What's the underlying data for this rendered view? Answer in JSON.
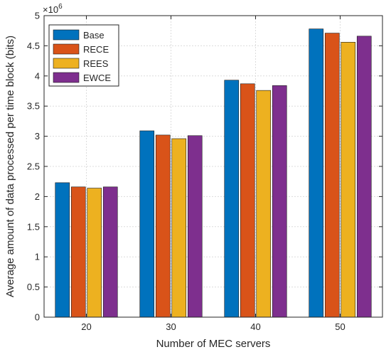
{
  "chart_data": {
    "type": "bar",
    "title": "",
    "xlabel": "Number of MEC servers",
    "ylabel": "Average amount of data processed per time block (bits)",
    "exponent_label": "×10",
    "exponent_power": "6",
    "categories": [
      "20",
      "30",
      "40",
      "50"
    ],
    "ylim": [
      0,
      5
    ],
    "yticks": [
      "0",
      "0.5",
      "1",
      "1.5",
      "2",
      "2.5",
      "3",
      "3.5",
      "4",
      "4.5",
      "5"
    ],
    "grid": true,
    "legend_position": "top-left",
    "series": [
      {
        "name": "Base",
        "color": "#0072BD",
        "values": [
          2.23,
          3.09,
          3.93,
          4.78
        ]
      },
      {
        "name": "RECE",
        "color": "#D95319",
        "values": [
          2.16,
          3.02,
          3.87,
          4.71
        ]
      },
      {
        "name": "REES",
        "color": "#EDB120",
        "values": [
          2.14,
          2.96,
          3.76,
          4.56
        ]
      },
      {
        "name": "EWCE",
        "color": "#7E2F8E",
        "values": [
          2.16,
          3.01,
          3.84,
          4.66
        ]
      }
    ]
  }
}
